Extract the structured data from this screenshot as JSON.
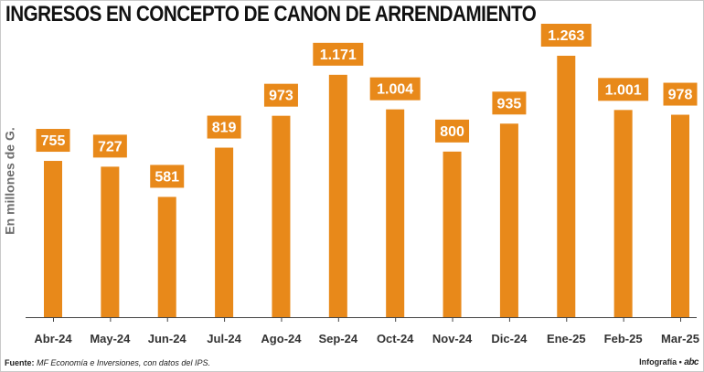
{
  "title": "INGRESOS EN CONCEPTO DE CANON DE ARRENDAMIENTO",
  "colors": {
    "bar": "#e8891a",
    "label_bg": "#e8891a",
    "label_text": "#ffffff",
    "axis": "#444444",
    "tick_text": "#333333"
  },
  "footer": {
    "source_label": "Fuente:",
    "source_text": "MF Economía e Inversiones, con datos del IPS.",
    "credit_label": "Infografía •",
    "brand": "abc"
  },
  "chart_data": {
    "type": "bar",
    "title": "INGRESOS EN CONCEPTO DE CANON DE ARRENDAMIENTO",
    "ylabel": "En millones de G.",
    "xlabel": "",
    "categories": [
      "Abr-24",
      "May-24",
      "Jun-24",
      "Jul-24",
      "Ago-24",
      "Sep-24",
      "Oct-24",
      "Nov-24",
      "Dic-24",
      "Ene-25",
      "Feb-25",
      "Mar-25"
    ],
    "values": [
      755,
      727,
      581,
      819,
      973,
      1171,
      1004,
      800,
      935,
      1263,
      1001,
      978
    ],
    "value_labels": [
      "755",
      "727",
      "581",
      "819",
      "973",
      "1.171",
      "1.004",
      "800",
      "935",
      "1.263",
      "1.001",
      "978"
    ],
    "ylim": [
      0,
      1263
    ],
    "grid": false,
    "legend": "none"
  }
}
